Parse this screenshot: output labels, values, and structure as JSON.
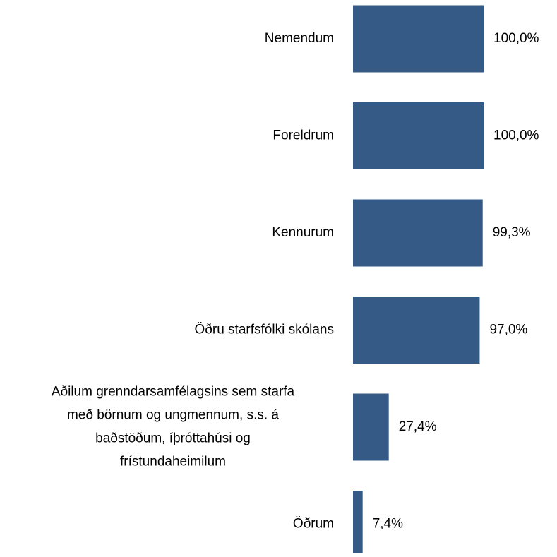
{
  "chart_data": {
    "type": "hbar",
    "categories": [
      "Nemendum",
      "Foreldrum",
      "Kennurum",
      "Öðru starfsfólki skólans",
      "Aðilum grenndarsamfélagsins sem starfa með börnum og ungmennum, s.s. á baðstöðum, íþróttahúsi og frístundaheimilum",
      "Öðrum"
    ],
    "values": [
      100,
      100,
      99.3,
      97,
      27.4,
      7.4
    ],
    "value_labels": [
      "100,0%",
      "100,0%",
      "99,3%",
      "97,0%",
      "27,4%",
      "7,4%"
    ],
    "color": "#355a86"
  }
}
